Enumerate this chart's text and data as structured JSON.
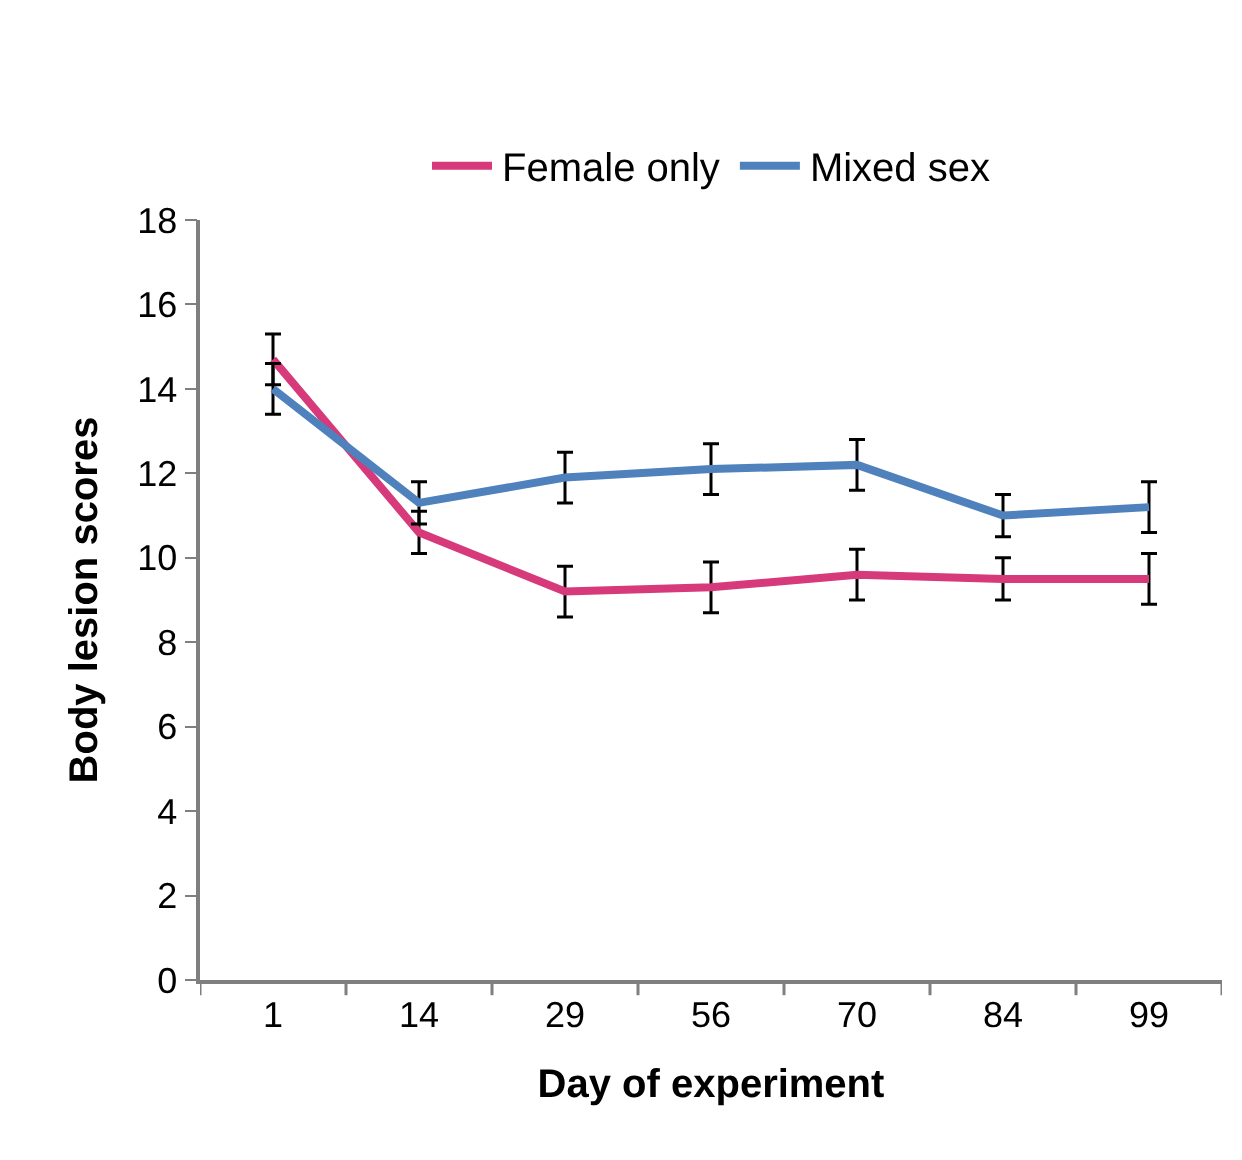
{
  "chart_data": {
    "type": "line",
    "xlabel": "Day of experiment",
    "ylabel": "Body lesion scores",
    "categories": [
      "1",
      "14",
      "29",
      "56",
      "70",
      "84",
      "99"
    ],
    "series": [
      {
        "name": "Female only",
        "color": "#d63a7a",
        "values": [
          14.7,
          10.6,
          9.2,
          9.3,
          9.6,
          9.5,
          9.5
        ],
        "errors": [
          0.6,
          0.5,
          0.6,
          0.6,
          0.6,
          0.5,
          0.6
        ]
      },
      {
        "name": "Mixed sex",
        "color": "#4f81bd",
        "values": [
          14.0,
          11.3,
          11.9,
          12.1,
          12.2,
          11.0,
          11.2
        ],
        "errors": [
          0.6,
          0.5,
          0.6,
          0.6,
          0.6,
          0.5,
          0.6
        ]
      }
    ],
    "ylim": [
      0,
      18
    ],
    "yticks": [
      0,
      2,
      4,
      6,
      8,
      10,
      12,
      14,
      16,
      18
    ],
    "grid": false,
    "legend": "top",
    "marker": "none",
    "line_style": "solid"
  }
}
